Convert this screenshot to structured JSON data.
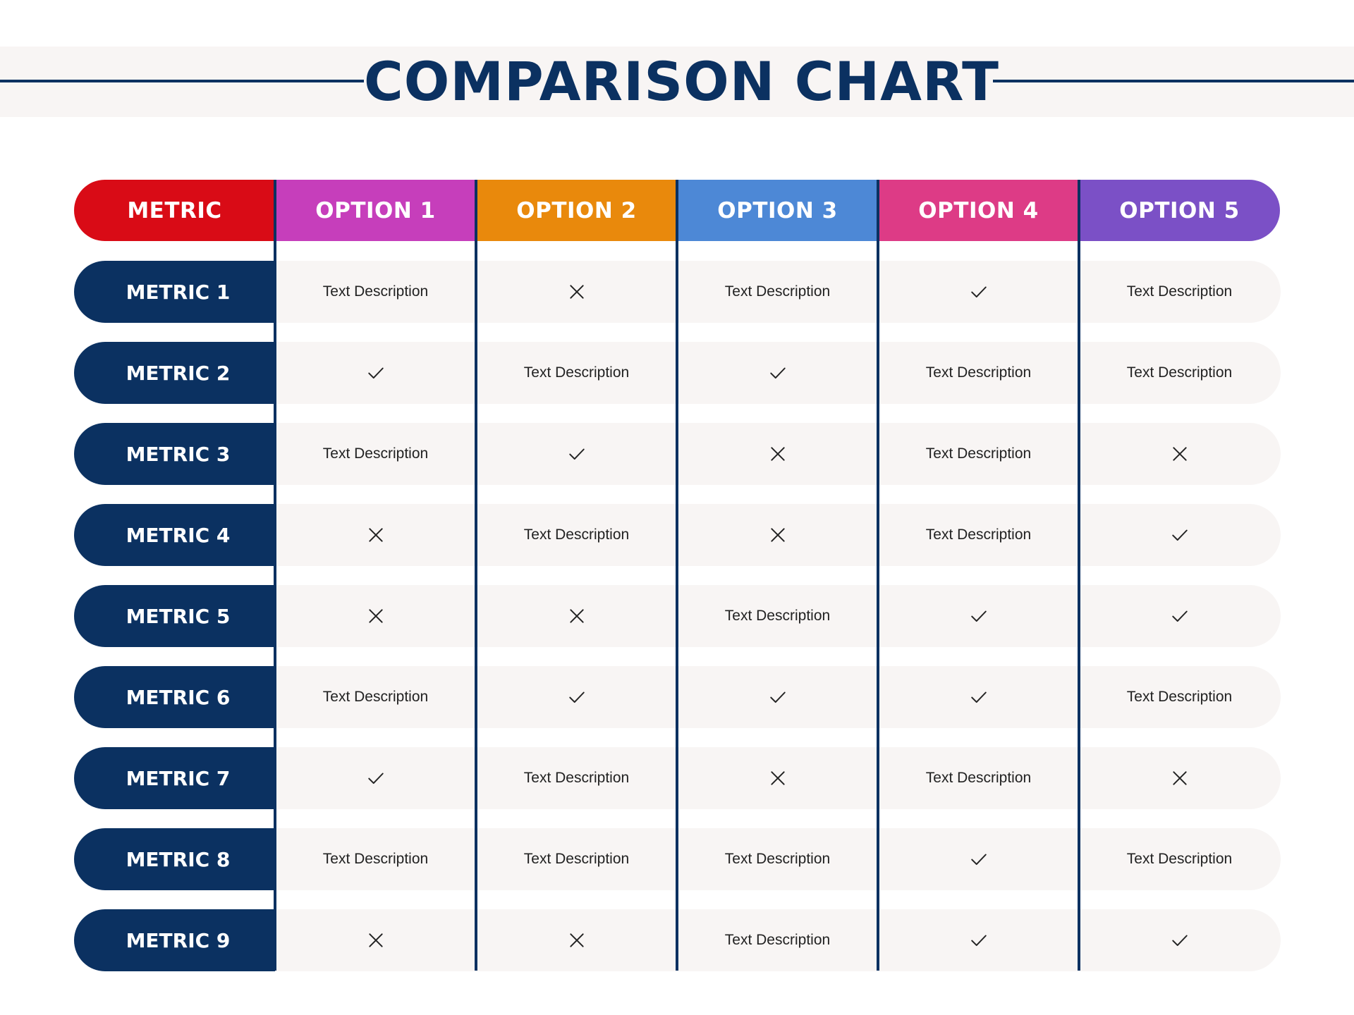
{
  "title": "COMPARISON CHART",
  "columns": [
    {
      "label": "METRIC",
      "color": "#d90b16"
    },
    {
      "label": "OPTION 1",
      "color": "#c63ebb"
    },
    {
      "label": "OPTION 2",
      "color": "#e9890c"
    },
    {
      "label": "OPTION 3",
      "color": "#4d88d6"
    },
    {
      "label": "OPTION 4",
      "color": "#dd3b86"
    },
    {
      "label": "OPTION 5",
      "color": "#7b50c6"
    }
  ],
  "rows": [
    {
      "metric": "METRIC 1",
      "cells": [
        "Text Description",
        "cross",
        "Text Description",
        "check",
        "Text Description"
      ]
    },
    {
      "metric": "METRIC 2",
      "cells": [
        "check",
        "Text Description",
        "check",
        "Text Description",
        "Text Description"
      ]
    },
    {
      "metric": "METRIC 3",
      "cells": [
        "Text Description",
        "check",
        "cross",
        "Text Description",
        "cross"
      ]
    },
    {
      "metric": "METRIC 4",
      "cells": [
        "cross",
        "Text Description",
        "cross",
        "Text Description",
        "check"
      ]
    },
    {
      "metric": "METRIC 5",
      "cells": [
        "cross",
        "cross",
        "Text Description",
        "check",
        "check"
      ]
    },
    {
      "metric": "METRIC 6",
      "cells": [
        "Text Description",
        "check",
        "check",
        "check",
        "Text Description"
      ]
    },
    {
      "metric": "METRIC 7",
      "cells": [
        "check",
        "Text Description",
        "cross",
        "Text Description",
        "cross"
      ]
    },
    {
      "metric": "METRIC 8",
      "cells": [
        "Text Description",
        "Text Description",
        "Text Description",
        "check",
        "Text Description"
      ]
    },
    {
      "metric": "METRIC 9",
      "cells": [
        "cross",
        "cross",
        "Text Description",
        "check",
        "check"
      ]
    }
  ],
  "colors": {
    "navy": "#0b3161",
    "row_bg": "#f8f5f4"
  }
}
